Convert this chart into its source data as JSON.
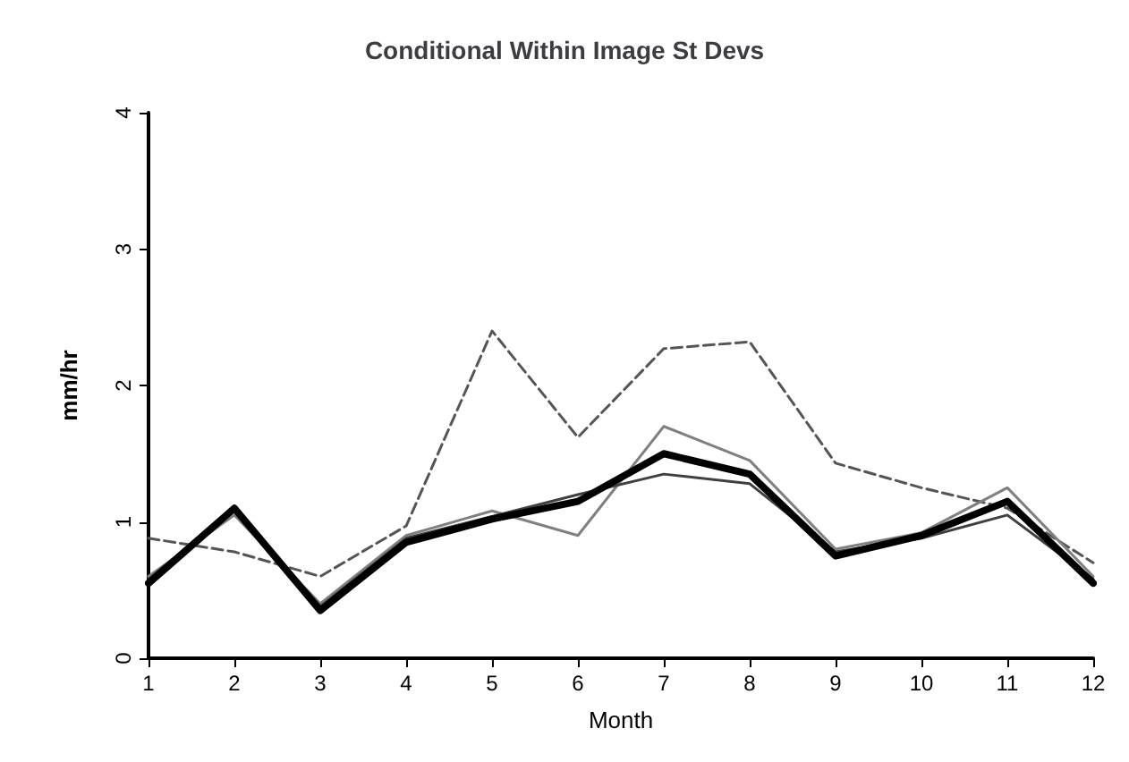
{
  "chart_data": {
    "type": "line",
    "title": "Conditional Within Image St Devs",
    "xlabel": "Month",
    "ylabel": "mm/hr",
    "x": [
      1,
      2,
      3,
      4,
      5,
      6,
      7,
      8,
      9,
      10,
      11,
      12
    ],
    "xlim": [
      1,
      12
    ],
    "xticks": [
      1,
      2,
      3,
      4,
      5,
      6,
      7,
      8,
      9,
      10,
      11,
      12
    ],
    "ylim": [
      0,
      4
    ],
    "yticks": [
      0,
      1,
      2,
      3,
      4
    ],
    "grid": false,
    "marker": "none",
    "series": [
      {
        "color": "#555555",
        "line_style": "dashed",
        "values": [
          0.88,
          0.78,
          0.6,
          0.97,
          2.4,
          1.62,
          2.27,
          2.32,
          1.43,
          1.25,
          1.1,
          0.7
        ]
      },
      {
        "color": "#808080",
        "line_style": "solid",
        "values": [
          0.6,
          1.05,
          0.4,
          0.9,
          1.08,
          0.9,
          1.7,
          1.45,
          0.8,
          0.92,
          1.25,
          0.6
        ]
      },
      {
        "color": "#404040",
        "line_style": "solid",
        "values": [
          0.58,
          1.1,
          0.38,
          0.88,
          1.04,
          1.2,
          1.35,
          1.28,
          0.78,
          0.88,
          1.05,
          0.58
        ]
      },
      {
        "color": "#000000",
        "line_style": "solid",
        "values": [
          0.55,
          1.1,
          0.35,
          0.85,
          1.02,
          1.15,
          1.5,
          1.35,
          0.75,
          0.9,
          1.15,
          0.55
        ]
      }
    ]
  }
}
